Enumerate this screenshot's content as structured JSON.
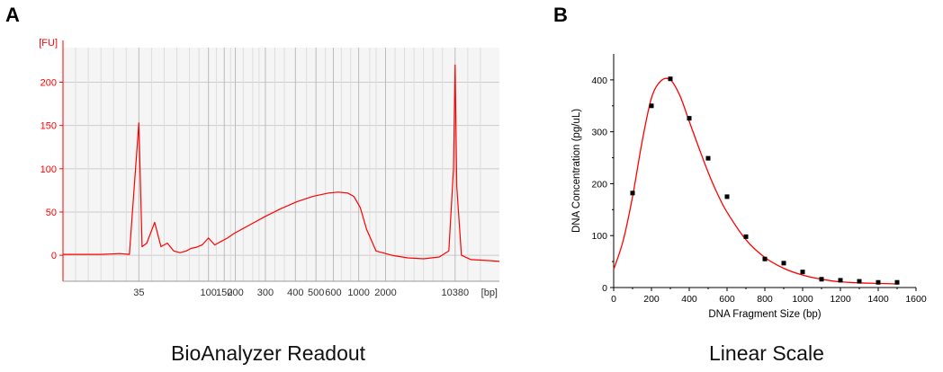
{
  "panels": {
    "a": {
      "letter": "A",
      "caption": "BioAnalyzer Readout"
    },
    "b": {
      "letter": "B",
      "caption": "Linear Scale"
    }
  },
  "colors": {
    "trace": "#ff0000",
    "axisA": "#ff0000",
    "gridA": "#cccccc",
    "plotBgA": "#f5f5f5",
    "markerB": "#000000"
  },
  "chart_data": [
    {
      "type": "line",
      "panel": "A",
      "ylabel": "[FU]",
      "xlabel": "[bp]",
      "y_ticks": [
        0,
        50,
        100,
        150,
        200
      ],
      "ylim": [
        -30,
        240
      ],
      "x_tick_labels": [
        "35",
        "100",
        "150",
        "200",
        "300",
        "400",
        "500",
        "600",
        "1000",
        "2000",
        "10380"
      ],
      "x_tick_units": [
        0,
        2.2,
        2.7,
        3.05,
        4.0,
        4.95,
        5.6,
        6.15,
        6.95,
        7.8,
        10.0
      ],
      "xlim_units": [
        -2.4,
        11.4
      ],
      "grid": true,
      "x": [
        -2.4,
        -1.2,
        -0.6,
        -0.3,
        0,
        0.1,
        0.25,
        0.5,
        0.7,
        0.9,
        1.1,
        1.3,
        1.5,
        1.65,
        1.8,
        2.0,
        2.2,
        2.4,
        2.5,
        2.6,
        2.8,
        3.0,
        3.5,
        4.0,
        4.5,
        5.0,
        5.5,
        6.0,
        6.3,
        6.6,
        6.8,
        7.0,
        7.2,
        7.5,
        8.0,
        8.5,
        9.0,
        9.5,
        9.8,
        9.95,
        10.0,
        10.05,
        10.2,
        10.5,
        11.0,
        11.4
      ],
      "values": [
        1,
        1,
        2,
        1,
        153,
        10,
        14,
        38,
        10,
        14,
        5,
        3,
        5,
        8,
        9,
        12,
        20,
        12,
        14,
        16,
        20,
        25,
        35,
        45,
        54,
        62,
        68,
        72,
        73,
        72,
        68,
        55,
        30,
        5,
        0,
        -3,
        -4,
        -2,
        5,
        100,
        220,
        80,
        0,
        -5,
        -6,
        -7
      ],
      "series": [
        {
          "name": ""
        }
      ]
    },
    {
      "type": "scatter",
      "panel": "B",
      "xlabel": "DNA Fragment Size (bp)",
      "ylabel": "DNA Concentration (pg/uL)",
      "xlim": [
        0,
        1600
      ],
      "ylim": [
        0,
        450
      ],
      "x_ticks": [
        0,
        200,
        400,
        600,
        800,
        1000,
        1200,
        1400,
        1600
      ],
      "y_ticks": [
        0,
        100,
        200,
        300,
        400
      ],
      "x": [
        100,
        200,
        300,
        400,
        500,
        600,
        700,
        800,
        900,
        1000,
        1100,
        1200,
        1300,
        1400,
        1500
      ],
      "values": [
        182,
        350,
        402,
        326,
        249,
        175,
        98,
        55,
        47,
        30,
        16,
        14,
        12,
        10,
        10
      ],
      "fit": {
        "x": [
          0,
          50,
          100,
          150,
          200,
          250,
          300,
          350,
          400,
          450,
          500,
          550,
          600,
          700,
          800,
          900,
          1000,
          1100,
          1200,
          1300,
          1400,
          1500
        ],
        "values": [
          35,
          90,
          175,
          280,
          365,
          398,
          400,
          370,
          320,
          270,
          222,
          180,
          145,
          92,
          58,
          37,
          24,
          16,
          11,
          9,
          8,
          7
        ]
      }
    }
  ]
}
